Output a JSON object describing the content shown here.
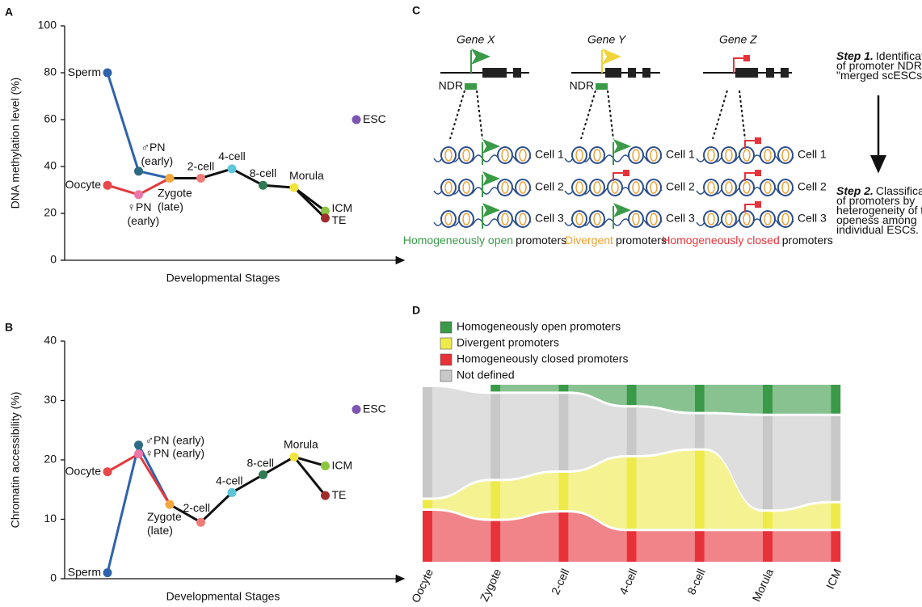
{
  "chart_data": [
    {
      "type": "line",
      "panel": "A",
      "ylabel": "DNA methylation level (%)",
      "xlabel": "Developmental Stages",
      "ylim": [
        0,
        100
      ],
      "yticks": [
        0,
        20,
        40,
        60,
        80,
        100
      ],
      "points": [
        {
          "label": [
            "Sperm"
          ],
          "x": 1,
          "y": 80,
          "color": "#2f62ad"
        },
        {
          "label": [
            "♂PN",
            "(early)"
          ],
          "x": 2,
          "y": 38,
          "color": "#2d6a84"
        },
        {
          "label": [
            "Oocyte"
          ],
          "x": 1,
          "y": 32,
          "color": "#e8484b"
        },
        {
          "label": [
            "♀PN",
            "(early)"
          ],
          "x": 2,
          "y": 28,
          "color": "#ec77a8"
        },
        {
          "label": [
            "Zygote",
            "(late)"
          ],
          "x": 3,
          "y": 35,
          "color": "#f4a83e"
        },
        {
          "label": [
            "2-cell"
          ],
          "x": 4,
          "y": 35,
          "color": "#f07c78"
        },
        {
          "label": [
            "4-cell"
          ],
          "x": 5,
          "y": 39,
          "color": "#5ec6da"
        },
        {
          "label": [
            "8-cell"
          ],
          "x": 6,
          "y": 32,
          "color": "#2f7a52"
        },
        {
          "label": [
            "Morula"
          ],
          "x": 7,
          "y": 31,
          "color": "#f2e43c"
        },
        {
          "label": [
            "ICM"
          ],
          "x": 8,
          "y": 21,
          "color": "#8dc540"
        },
        {
          "label": [
            "TE"
          ],
          "x": 8,
          "y": 18,
          "color": "#9e2e2c"
        },
        {
          "label": [
            "ESC"
          ],
          "x": 9,
          "y": 60,
          "color": "#7c55b3"
        }
      ]
    },
    {
      "type": "line",
      "panel": "B",
      "ylabel": "Chromatin accessibility (%)",
      "xlabel": "Developmental Stages",
      "ylim": [
        0,
        40
      ],
      "yticks": [
        0,
        10,
        20,
        30,
        40
      ],
      "points": [
        {
          "label": [
            "Sperm"
          ],
          "x": 1,
          "y": 1,
          "color": "#2f62ad"
        },
        {
          "label": [
            "♂PN (early)"
          ],
          "x": 2,
          "y": 22.5,
          "color": "#2d6a84"
        },
        {
          "label": [
            "Oocyte"
          ],
          "x": 1,
          "y": 18,
          "color": "#e8484b"
        },
        {
          "label": [
            "♀PN (early)"
          ],
          "x": 2,
          "y": 21,
          "color": "#ec77a8"
        },
        {
          "label": [
            "Zygote",
            "(late)"
          ],
          "x": 3,
          "y": 12.5,
          "color": "#f4a83e"
        },
        {
          "label": [
            "2-cell"
          ],
          "x": 4,
          "y": 9.5,
          "color": "#f07c78"
        },
        {
          "label": [
            "4-cell"
          ],
          "x": 5,
          "y": 14.5,
          "color": "#5ec6da"
        },
        {
          "label": [
            "8-cell"
          ],
          "x": 6,
          "y": 17.5,
          "color": "#2f7a52"
        },
        {
          "label": [
            "Morula"
          ],
          "x": 7,
          "y": 20.5,
          "color": "#f2e43c"
        },
        {
          "label": [
            "ICM"
          ],
          "x": 8,
          "y": 19,
          "color": "#8dc540"
        },
        {
          "label": [
            "TE"
          ],
          "x": 8,
          "y": 14,
          "color": "#9e2e2c"
        },
        {
          "label": [
            "ESC"
          ],
          "x": 9,
          "y": 28.5,
          "color": "#7c55b3"
        }
      ]
    },
    {
      "type": "diagram",
      "panel": "C",
      "genes": [
        "Gene X",
        "Gene Y",
        "Gene Z"
      ],
      "ndr": "NDR",
      "cells": [
        "Cell 1",
        "Cell 2",
        "Cell 3"
      ],
      "captions": [
        {
          "highlight": "Homogeneously open",
          "rest": "promoters",
          "color": "#3a9a48"
        },
        {
          "highlight": "Divergent",
          "rest": "promoters",
          "color": "#f0a030"
        },
        {
          "highlight": "Homogeneously closed",
          "rest": "promoters",
          "color": "#e8323a"
        }
      ],
      "steps": [
        {
          "label": "Step 1.",
          "lines": [
            "Identification",
            "of promoter NDRs in",
            "\"merged scESCs\"."
          ]
        },
        {
          "label": "Step 2.",
          "lines": [
            "Classification",
            "of promoters by",
            "heterogeneity of their",
            "openess among",
            "individual ESCs."
          ]
        }
      ]
    },
    {
      "type": "alluvial",
      "panel": "D",
      "categories": [
        "Oocyte",
        "Zygote",
        "2-cell",
        "4-cell",
        "8-cell",
        "Morula",
        "ICM"
      ],
      "series": [
        {
          "name": "Homogeneously open promoters",
          "color": "#3a9a48",
          "values": [
            0,
            4,
            4,
            12,
            16,
            17,
            17
          ]
        },
        {
          "name": "Divergent promoters",
          "color": "#eeea4a",
          "values": [
            5,
            22,
            22,
            42,
            46,
            10,
            15
          ]
        },
        {
          "name": "Homogeneously closed promoters",
          "color": "#e8323a",
          "values": [
            30,
            24,
            29,
            18,
            18,
            18,
            18
          ]
        },
        {
          "name": "Not defined",
          "color": "#c8c8c8",
          "values": [
            65,
            50,
            45,
            28,
            20,
            55,
            50
          ]
        }
      ]
    }
  ]
}
